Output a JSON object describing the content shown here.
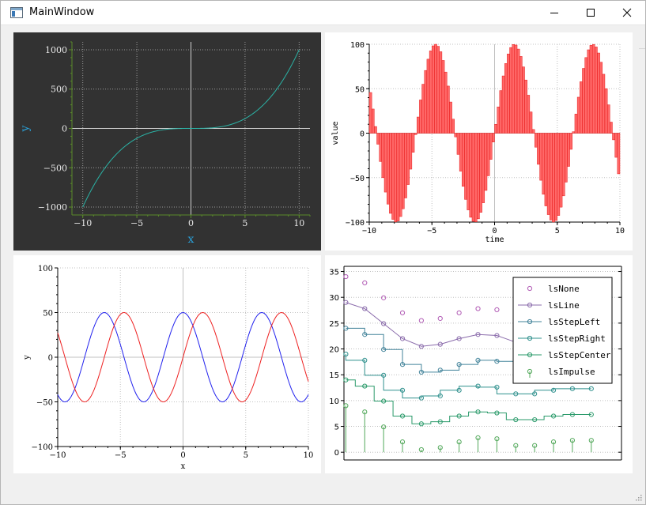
{
  "window": {
    "title": "MainWindow"
  },
  "chart_data": [
    {
      "type": "line",
      "xlabel": "x",
      "ylabel": "y",
      "xlim": [
        -11,
        11
      ],
      "ylim": [
        -1100,
        1100
      ],
      "xticks": [
        -10,
        -5,
        0,
        5,
        10
      ],
      "yticks": [
        -1000,
        -500,
        0,
        500,
        1000
      ],
      "xtick_labels": [
        "−10",
        "−5",
        "0",
        "5",
        "10"
      ],
      "ytick_labels": [
        "−1000",
        "−500",
        "0",
        "500",
        "1000"
      ],
      "grid": true,
      "theme": "dark",
      "series": [
        {
          "function": "y = x^3",
          "x_range": [
            -10,
            10
          ],
          "color": "#2bb3a6"
        }
      ]
    },
    {
      "type": "bar",
      "xlabel": "time",
      "ylabel": "value",
      "xlim": [
        -10,
        10
      ],
      "ylim": [
        -100,
        100
      ],
      "xticks": [
        -10,
        -5,
        0,
        5,
        10
      ],
      "yticks": [
        -100,
        -50,
        0,
        50,
        100
      ],
      "xtick_labels": [
        "−10",
        "−5",
        "0",
        "5",
        "10"
      ],
      "ytick_labels": [
        "−100",
        "−50",
        "0",
        "50",
        "100"
      ],
      "grid": true,
      "series": [
        {
          "function": "y = 100*sin(x)",
          "x_range": [
            -10,
            10
          ],
          "bar_count": 100,
          "color": "#ff3333"
        }
      ]
    },
    {
      "type": "line",
      "xlabel": "x",
      "ylabel": "y",
      "xlim": [
        -10,
        10
      ],
      "ylim": [
        -100,
        100
      ],
      "xticks": [
        -10,
        -5,
        0,
        5,
        10
      ],
      "yticks": [
        -100,
        -50,
        0,
        50,
        100
      ],
      "xtick_labels": [
        "−10",
        "−5",
        "0",
        "5",
        "10"
      ],
      "ytick_labels": [
        "−100",
        "−50",
        "0",
        "50",
        "100"
      ],
      "grid": true,
      "series": [
        {
          "function": "y = 50*cos(x)",
          "x_range": [
            -10,
            10
          ],
          "color": "#2222ee"
        },
        {
          "function": "y = 50*sin(x)",
          "x_range": [
            -10,
            10
          ],
          "color": "#ee2222"
        }
      ]
    },
    {
      "type": "line",
      "xlim": [
        -0.1,
        14.6
      ],
      "ylim": [
        -1.5,
        36
      ],
      "yticks": [
        0,
        5,
        10,
        15,
        20,
        25,
        30,
        35
      ],
      "ytick_labels": [
        "0",
        "5",
        "10",
        "15",
        "20",
        "25",
        "30",
        "35"
      ],
      "grid": true,
      "legend_position": "top-right",
      "series": [
        {
          "name": "lsNone",
          "style": "none",
          "color": "#b15bb5",
          "offset": 25,
          "values": [
            9.0,
            7.8,
            4.9,
            2.0,
            0.5,
            0.9,
            2.0,
            2.8,
            2.6,
            1.3,
            1.3,
            2.0,
            2.3,
            2.3
          ]
        },
        {
          "name": "lsLine",
          "style": "line",
          "color": "#8a6bab",
          "offset": 20,
          "values": [
            9.0,
            7.8,
            4.9,
            2.0,
            0.5,
            0.9,
            2.0,
            2.8,
            2.6,
            1.3,
            1.3,
            2.0,
            2.3,
            2.3
          ]
        },
        {
          "name": "lsStepLeft",
          "style": "stepLeft",
          "color": "#42839a",
          "offset": 15,
          "values": [
            9.0,
            7.8,
            4.9,
            2.0,
            0.5,
            0.9,
            2.0,
            2.8,
            2.6,
            1.3,
            1.3,
            2.0,
            2.3,
            2.3
          ]
        },
        {
          "name": "lsStepRight",
          "style": "stepRight",
          "color": "#2f908d",
          "offset": 10,
          "values": [
            9.0,
            7.8,
            4.9,
            2.0,
            0.5,
            0.9,
            2.0,
            2.8,
            2.6,
            1.3,
            1.3,
            2.0,
            2.3,
            2.3
          ]
        },
        {
          "name": "lsStepCenter",
          "style": "stepCenter",
          "color": "#2a9a6a",
          "offset": 5,
          "values": [
            9.0,
            7.8,
            4.9,
            2.0,
            0.5,
            0.9,
            2.0,
            2.8,
            2.6,
            1.3,
            1.3,
            2.0,
            2.3,
            2.3
          ]
        },
        {
          "name": "lsImpulse",
          "style": "impulse",
          "color": "#52a85a",
          "offset": 0,
          "values": [
            9.0,
            7.8,
            4.9,
            2.0,
            0.5,
            0.9,
            2.0,
            2.8,
            2.6,
            1.3,
            1.3,
            2.0,
            2.3,
            2.3
          ]
        }
      ]
    }
  ]
}
